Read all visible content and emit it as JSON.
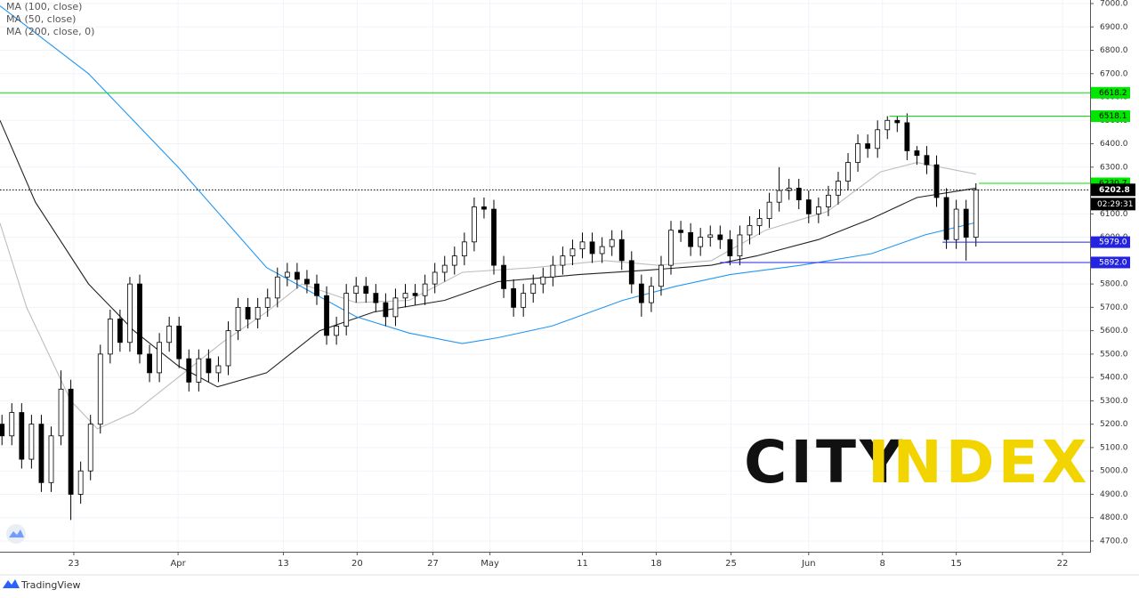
{
  "chart_data": {
    "type": "candlestick",
    "legend": [
      "MA (100, close)",
      "MA (50, close)",
      "MA (200, close, 0)"
    ],
    "xlim": [
      -0.2,
      110.6
    ],
    "ylim": [
      4654.2,
      7015.2
    ],
    "xticks": [
      {
        "value": 7.3,
        "label": "23"
      },
      {
        "value": 17.9,
        "label": "Apr"
      },
      {
        "value": 28.6,
        "label": "13"
      },
      {
        "value": 36.1,
        "label": "20"
      },
      {
        "value": 43.8,
        "label": "27"
      },
      {
        "value": 49.6,
        "label": "May"
      },
      {
        "value": 59.0,
        "label": "11"
      },
      {
        "value": 66.5,
        "label": "18"
      },
      {
        "value": 74.1,
        "label": "25"
      },
      {
        "value": 82.0,
        "label": "Jun"
      },
      {
        "value": 89.5,
        "label": "8"
      },
      {
        "value": 97.0,
        "label": "15"
      },
      {
        "value": 107.8,
        "label": "22"
      }
    ],
    "yticks": [
      {
        "value": 4700,
        "label": "4700.0"
      },
      {
        "value": 4800,
        "label": "4800.0"
      },
      {
        "value": 4900,
        "label": "4900.0"
      },
      {
        "value": 5000,
        "label": "5000.0"
      },
      {
        "value": 5100,
        "label": "5100.0"
      },
      {
        "value": 5200,
        "label": "5200.0"
      },
      {
        "value": 5300,
        "label": "5300.0"
      },
      {
        "value": 5400,
        "label": "5400.0"
      },
      {
        "value": 5500,
        "label": "5500.0"
      },
      {
        "value": 5600,
        "label": "5600.0"
      },
      {
        "value": 5700,
        "label": "5700.0"
      },
      {
        "value": 5800,
        "label": "5800.0"
      },
      {
        "value": 5900,
        "label": "5900.0"
      },
      {
        "value": 6000,
        "label": "6000.0"
      },
      {
        "value": 6100,
        "label": "6100.0"
      },
      {
        "value": 6200,
        "label": "6200.0"
      },
      {
        "value": 6300,
        "label": "6300.0"
      },
      {
        "value": 6400,
        "label": "6400.0"
      },
      {
        "value": 6500,
        "label": "6500.0"
      },
      {
        "value": 6600,
        "label": "6600.0"
      },
      {
        "value": 6700,
        "label": "6700.0"
      },
      {
        "value": 6800,
        "label": "6800.0"
      },
      {
        "value": 6900,
        "label": "6900.0"
      },
      {
        "value": 7000,
        "label": "7000.0"
      }
    ],
    "candles": {
      "up_color": "#ffffff",
      "down_color": "#000000",
      "edge_color": "#000000",
      "open": [
        5200,
        5150,
        5250,
        5050,
        5200,
        4950,
        5150,
        5350,
        4900,
        5000,
        5200,
        5500,
        5650,
        5550,
        5800,
        5500,
        5420,
        5550,
        5620,
        5480,
        5380,
        5480,
        5420,
        5450,
        5600,
        5700,
        5650,
        5700,
        5740,
        5830,
        5850,
        5820,
        5800,
        5750,
        5580,
        5620,
        5760,
        5790,
        5760,
        5720,
        5660,
        5740,
        5760,
        5750,
        5800,
        5850,
        5880,
        5920,
        5980,
        6130,
        6120,
        5880,
        5780,
        5700,
        5760,
        5800,
        5830,
        5880,
        5920,
        5950,
        5980,
        5930,
        5960,
        5990,
        5900,
        5800,
        5720,
        5790,
        5880,
        6030,
        6020,
        5960,
        6000,
        6010,
        5990,
        5920,
        6010,
        6050,
        6080,
        6150,
        6200,
        6210,
        6160,
        6100,
        6130,
        6180,
        6240,
        6320,
        6400,
        6380,
        6460,
        6500,
        6490,
        6370,
        6350,
        6310,
        6170,
        5990,
        6120,
        6000
      ],
      "high": [
        5240,
        5290,
        5290,
        5240,
        5240,
        5190,
        5430,
        5390,
        5040,
        5240,
        5540,
        5690,
        5690,
        5830,
        5840,
        5540,
        5590,
        5660,
        5660,
        5520,
        5520,
        5520,
        5490,
        5640,
        5740,
        5740,
        5740,
        5780,
        5870,
        5890,
        5890,
        5860,
        5840,
        5790,
        5660,
        5800,
        5830,
        5830,
        5800,
        5760,
        5780,
        5800,
        5800,
        5840,
        5890,
        5920,
        5960,
        6020,
        6170,
        6170,
        6160,
        5920,
        5820,
        5800,
        5840,
        5870,
        5920,
        5960,
        5990,
        6020,
        6020,
        6000,
        6030,
        6030,
        5940,
        5840,
        5830,
        5920,
        6070,
        6070,
        6060,
        6040,
        6050,
        6050,
        6030,
        6050,
        6090,
        6120,
        6190,
        6300,
        6250,
        6250,
        6200,
        6170,
        6220,
        6280,
        6360,
        6440,
        6440,
        6500,
        6518,
        6518,
        6530,
        6390,
        6390,
        6350,
        6210,
        6160,
        6160,
        6231
      ],
      "low": [
        5110,
        5110,
        5010,
        5010,
        4910,
        4910,
        5110,
        4790,
        4860,
        4960,
        5160,
        5460,
        5510,
        5510,
        5460,
        5380,
        5380,
        5510,
        5440,
        5340,
        5340,
        5380,
        5380,
        5410,
        5560,
        5610,
        5610,
        5660,
        5700,
        5790,
        5780,
        5760,
        5710,
        5540,
        5540,
        5580,
        5720,
        5720,
        5680,
        5620,
        5620,
        5700,
        5710,
        5710,
        5760,
        5810,
        5840,
        5880,
        5940,
        6080,
        5840,
        5740,
        5660,
        5660,
        5720,
        5760,
        5790,
        5840,
        5880,
        5910,
        5890,
        5890,
        5920,
        5860,
        5760,
        5660,
        5680,
        5750,
        5840,
        5980,
        5920,
        5920,
        5960,
        5950,
        5880,
        5880,
        5970,
        6010,
        6040,
        6110,
        6160,
        6120,
        6060,
        6060,
        6090,
        6140,
        6200,
        6280,
        6340,
        6340,
        6420,
        6450,
        6330,
        6310,
        6270,
        6130,
        5950,
        5950,
        5900,
        5960
      ],
      "close": [
        5150,
        5250,
        5050,
        5200,
        4950,
        5150,
        5350,
        4900,
        5000,
        5200,
        5500,
        5650,
        5550,
        5800,
        5500,
        5420,
        5550,
        5620,
        5480,
        5380,
        5480,
        5420,
        5450,
        5600,
        5700,
        5650,
        5700,
        5740,
        5830,
        5850,
        5820,
        5800,
        5750,
        5580,
        5620,
        5760,
        5790,
        5760,
        5720,
        5660,
        5740,
        5760,
        5750,
        5800,
        5850,
        5880,
        5920,
        5980,
        6130,
        6120,
        5880,
        5780,
        5700,
        5760,
        5800,
        5830,
        5880,
        5920,
        5950,
        5980,
        5930,
        5960,
        5990,
        5900,
        5800,
        5720,
        5790,
        5880,
        6030,
        6020,
        5960,
        6000,
        6010,
        5990,
        5920,
        6010,
        6050,
        6080,
        6150,
        6200,
        6210,
        6160,
        6100,
        6130,
        6180,
        6240,
        6320,
        6400,
        6380,
        6460,
        6500,
        6490,
        6370,
        6350,
        6310,
        6170,
        5990,
        6120,
        6000,
        6203
      ]
    },
    "series": [
      {
        "name": "MA (100, close)",
        "color": "#222222",
        "x": [
          -0.2,
          3.4,
          8.8,
          13.4,
          17.9,
          21.9,
          26.9,
          32.3,
          37.8,
          45.0,
          50.4,
          58.6,
          65.8,
          72.1,
          76.7,
          83.0,
          88.4,
          93.0,
          99.0
        ],
        "values": [
          6500,
          6150,
          5800,
          5600,
          5450,
          5360,
          5420,
          5600,
          5680,
          5730,
          5810,
          5840,
          5860,
          5880,
          5920,
          5990,
          6080,
          6170,
          6210
        ]
      },
      {
        "name": "MA (50, close)",
        "color": "#bdbdbd",
        "x": [
          -0.2,
          2.5,
          7.0,
          9.7,
          13.4,
          17.9,
          22.4,
          26.9,
          30.5,
          36.0,
          41.4,
          46.8,
          54.1,
          61.3,
          66.7,
          72.1,
          77.6,
          83.9,
          89.3,
          93.0,
          99.0
        ],
        "values": [
          6060,
          5700,
          5300,
          5180,
          5250,
          5400,
          5550,
          5680,
          5800,
          5720,
          5730,
          5850,
          5870,
          5900,
          5880,
          5900,
          6030,
          6110,
          6280,
          6320,
          6270
        ]
      },
      {
        "name": "MA (200, close, 0)",
        "color": "#2196f3",
        "x": [
          -0.2,
          8.8,
          17.9,
          26.9,
          36.0,
          41.4,
          46.8,
          50.4,
          55.9,
          63.1,
          68.5,
          74.0,
          81.2,
          88.4,
          93.8,
          99.0
        ],
        "values": [
          6990,
          6700,
          6300,
          5870,
          5660,
          5590,
          5545,
          5570,
          5620,
          5730,
          5790,
          5840,
          5880,
          5930,
          6010,
          6063
        ]
      }
    ],
    "levels": [
      {
        "value": 6618.2,
        "label": "6618.2",
        "color": "#00e600",
        "start": -0.2
      },
      {
        "value": 6518.1,
        "label": "6518.1",
        "color": "#00e600",
        "start": 90.2
      },
      {
        "value": 6230.7,
        "label": "6230.7",
        "color": "#00e600",
        "start": 99.3
      },
      {
        "value": 5979.0,
        "label": "5979.0",
        "color": "#2424e0",
        "start": 95.6
      },
      {
        "value": 5892.0,
        "label": "5892.0",
        "color": "#2424e0",
        "start": 73.0
      }
    ],
    "last_price": {
      "value": 6202.8,
      "label": "6202.8",
      "countdown": "02:29:31"
    },
    "watermark": {
      "left": "CITY",
      "right": "INDEX"
    }
  },
  "footer": "TradingView"
}
